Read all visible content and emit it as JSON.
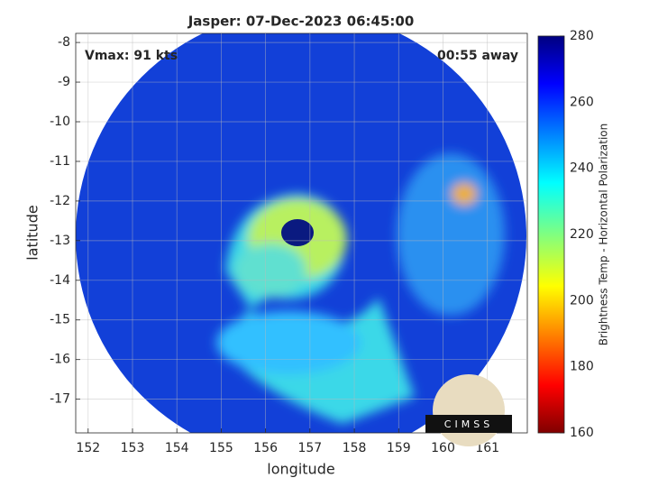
{
  "chart_data": {
    "type": "image",
    "title": "Jasper: 07-Dec-2023 06:45:00",
    "annotations": [
      "Vmax: 91 kts",
      "00:55 away"
    ],
    "xlabel": "longitude",
    "ylabel": "latitude",
    "xlim": [
      151.72,
      161.9
    ],
    "ylim": [
      -17.85,
      -7.77
    ],
    "xticks": [
      152,
      153,
      154,
      155,
      156,
      157,
      158,
      159,
      160,
      161
    ],
    "yticks": [
      -8,
      -9,
      -10,
      -11,
      -12,
      -13,
      -14,
      -15,
      -16,
      -17
    ],
    "grid": true,
    "colorbar": {
      "label": "Brightness Temp - Horizontal Polarization",
      "lim": [
        160,
        280
      ],
      "ticks": [
        160,
        180,
        200,
        220,
        240,
        260,
        280
      ],
      "colormap": "jet"
    },
    "logo": "CIMSS"
  }
}
